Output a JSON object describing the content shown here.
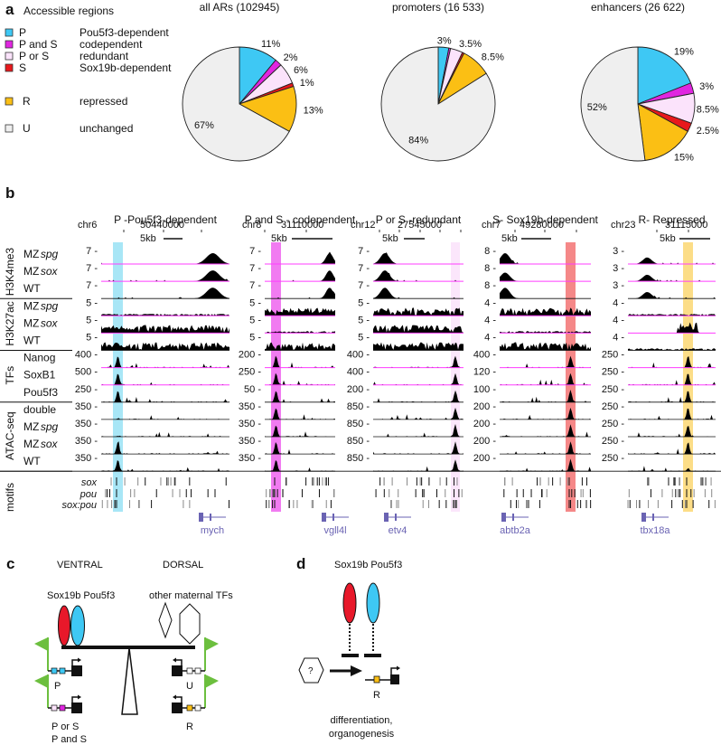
{
  "panel_a": {
    "letter": "a",
    "title": "Accessible regions",
    "legend": [
      {
        "code": "P",
        "desc": "Pou5f3-dependent",
        "color": "#3ec8f4"
      },
      {
        "code": "P and S",
        "desc": "codependent",
        "color": "#e026e0"
      },
      {
        "code": "P or S",
        "desc": "redundant",
        "color": "#fbe3fb"
      },
      {
        "code": "S",
        "desc": "Sox19b-dependent",
        "color": "#e8181c"
      },
      {
        "code": "R",
        "desc": "repressed",
        "color": "#fbbf14"
      },
      {
        "code": "U",
        "desc": "unchanged",
        "color": "#efefef"
      }
    ]
  },
  "chart_data": [
    {
      "type": "pie",
      "title": "all ARs (102945)",
      "categories": [
        "P",
        "P and S",
        "P or S",
        "S",
        "R",
        "U"
      ],
      "values": [
        11,
        2,
        6,
        1,
        13,
        67
      ],
      "labels": [
        "11%",
        "2%",
        "6%",
        "1%",
        "13%",
        "67%"
      ]
    },
    {
      "type": "pie",
      "title": "promoters (16 533)",
      "categories": [
        "P",
        "P and S",
        "P or S",
        "S",
        "R",
        "U"
      ],
      "values": [
        3,
        0.5,
        3.5,
        0.5,
        8.5,
        84
      ],
      "labels": [
        "3%",
        null,
        "3.5%",
        null,
        "8.5%",
        "84%"
      ]
    },
    {
      "type": "pie",
      "title": "enhancers (26 622)",
      "categories": [
        "P",
        "P and S",
        "P or S",
        "S",
        "R",
        "U"
      ],
      "values": [
        19,
        3,
        8.5,
        2.5,
        15,
        52
      ],
      "labels": [
        "19%",
        "3%",
        "8.5%",
        "2.5%",
        "15%",
        "52%"
      ]
    }
  ],
  "panel_b": {
    "letter": "b",
    "groups": [
      "H3K4me3",
      "H3K27ac",
      "TFs",
      "ATAC-seq",
      "motifs"
    ],
    "rows": [
      {
        "pre": "MZ",
        "it": "spg"
      },
      {
        "pre": "MZ",
        "it": "sox"
      },
      {
        "pre": "WT",
        "it": ""
      },
      {
        "pre": "MZ",
        "it": "spg"
      },
      {
        "pre": "MZ",
        "it": "sox"
      },
      {
        "pre": "WT",
        "it": ""
      },
      {
        "pre": "Nanog",
        "it": ""
      },
      {
        "pre": "SoxB1",
        "it": ""
      },
      {
        "pre": "Pou5f3",
        "it": ""
      },
      {
        "pre": "double",
        "it": ""
      },
      {
        "pre": "MZ",
        "it": "spg"
      },
      {
        "pre": "MZ",
        "it": "sox"
      },
      {
        "pre": "WT",
        "it": ""
      }
    ],
    "motif_rows": [
      "sox",
      "pou",
      "sox:pou"
    ],
    "loci": [
      {
        "title": "P -Pou5f3-dependent",
        "chr": "chr6",
        "coord": "50440000",
        "scale": "5kb",
        "gene": "mych",
        "highlight": "#9ee3f5",
        "scales": [
          "7",
          "7",
          "7",
          "5",
          "5",
          "5",
          "400",
          "500",
          "250",
          "350",
          "350",
          "350",
          "350"
        ]
      },
      {
        "title": "P and S - codependent",
        "chr": "chr8",
        "coord": "31110000",
        "scale": "5kb",
        "gene": "vgll4l",
        "highlight": "#f06df0",
        "scales": [
          "7",
          "7",
          "7",
          "5",
          "5",
          "5",
          "200",
          "250",
          "50",
          "350",
          "350",
          "350",
          "350"
        ]
      },
      {
        "title": "P or S -redundant",
        "chr": "chr12",
        "coord": "27545000",
        "scale": "5kb",
        "gene": "etv4",
        "highlight": "#fbe3fb",
        "scales": [
          "7",
          "7",
          "7",
          "5",
          "5",
          "5",
          "400",
          "400",
          "200",
          "850",
          "850",
          "850",
          "850"
        ]
      },
      {
        "title": "S- Sox19b-dependent",
        "chr": "chr7",
        "coord": "49280000",
        "scale": "5kb",
        "gene": "abtb2a",
        "highlight": "#f47b7b",
        "scales": [
          "8",
          "8",
          "8",
          "4",
          "4",
          "4",
          "400",
          "120",
          "100",
          "200",
          "200",
          "200",
          "200"
        ]
      },
      {
        "title": "R- Repressed",
        "chr": "chr23",
        "coord": "31115000",
        "scale": "5kb",
        "gene": "tbx18a",
        "highlight": "#fcd97a",
        "scales": [
          "3",
          "3",
          "3",
          "4",
          "4",
          "4",
          "250",
          "250",
          "250",
          "250",
          "250",
          "250",
          "250"
        ]
      }
    ]
  },
  "panel_c": {
    "letter": "c",
    "ventral": "VENTRAL",
    "dorsal": "DORSAL",
    "tf_label": "Sox19b Pou5f3",
    "other_label": "other maternal TFs",
    "label_p": "P",
    "label_pors": "P or S",
    "label_pands": "P and S",
    "label_u": "U",
    "label_r": "R"
  },
  "panel_d": {
    "letter": "d",
    "tf_label": "Sox19b  Pou5f3",
    "unknown": "?",
    "label_r": "R",
    "outcome_1": "differentiation,",
    "outcome_2": "organogenesis"
  },
  "colors": {
    "sox19b": "#e8182a",
    "pou5f3": "#3ec8f4",
    "flag": "#6cbf3e",
    "magenta_baseline": "#ff3cff",
    "gene": "#6a63b3"
  }
}
